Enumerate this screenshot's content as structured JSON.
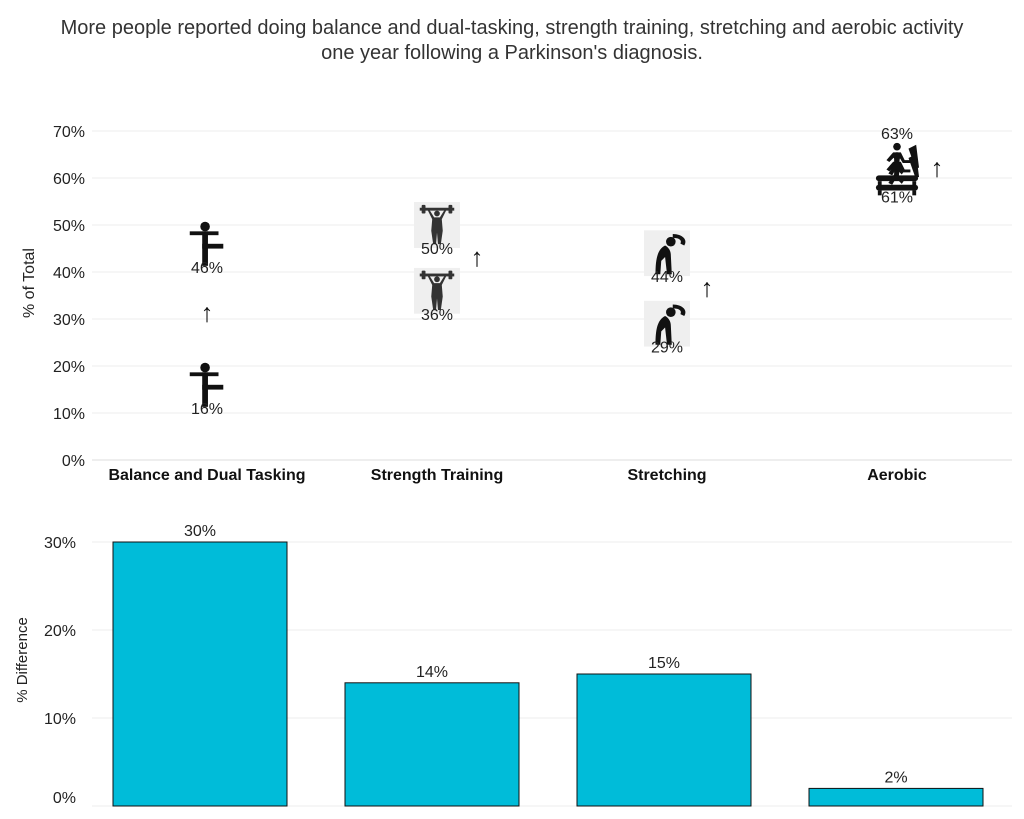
{
  "title": {
    "line1": "More people reported doing balance and dual-tasking, strength training, stretching and aerobic activity",
    "line2": "one year following a Parkinson's diagnosis."
  },
  "chart_data": [
    {
      "type": "scatter",
      "ylabel": "% of Total",
      "ylim": [
        0,
        70
      ],
      "yticks": [
        0,
        10,
        20,
        30,
        40,
        50,
        60,
        70
      ],
      "ytick_labels": [
        "0%",
        "10%",
        "20%",
        "30%",
        "40%",
        "50%",
        "60%",
        "70%"
      ],
      "grid": true,
      "categories": [
        "Balance and Dual Tasking",
        "Strength Training",
        "Stretching",
        "Aerobic"
      ],
      "icons": [
        "balance-pose-icon",
        "weightlifter-icon",
        "stretching-person-icon",
        "treadmill-runner-icon"
      ],
      "before": [
        16,
        36,
        29,
        61
      ],
      "after": [
        46,
        50,
        44,
        63
      ],
      "before_labels": [
        "16%",
        "36%",
        "29%",
        "61%"
      ],
      "after_labels": [
        "46%",
        "50%",
        "44%",
        "63%"
      ],
      "arrow": "↑"
    },
    {
      "type": "bar",
      "ylabel": "% Difference",
      "ylim": [
        0,
        30
      ],
      "yticks": [
        0,
        10,
        20,
        30
      ],
      "ytick_labels": [
        "0%",
        "10%",
        "20%",
        "30%"
      ],
      "grid": true,
      "categories": [
        "Balance and Dual Tasking",
        "Strength Training",
        "Stretching",
        "Aerobic"
      ],
      "values": [
        30,
        14,
        15,
        2
      ],
      "labels": [
        "30%",
        "14%",
        "15%",
        "2%"
      ],
      "color": "#00bcd9"
    }
  ]
}
